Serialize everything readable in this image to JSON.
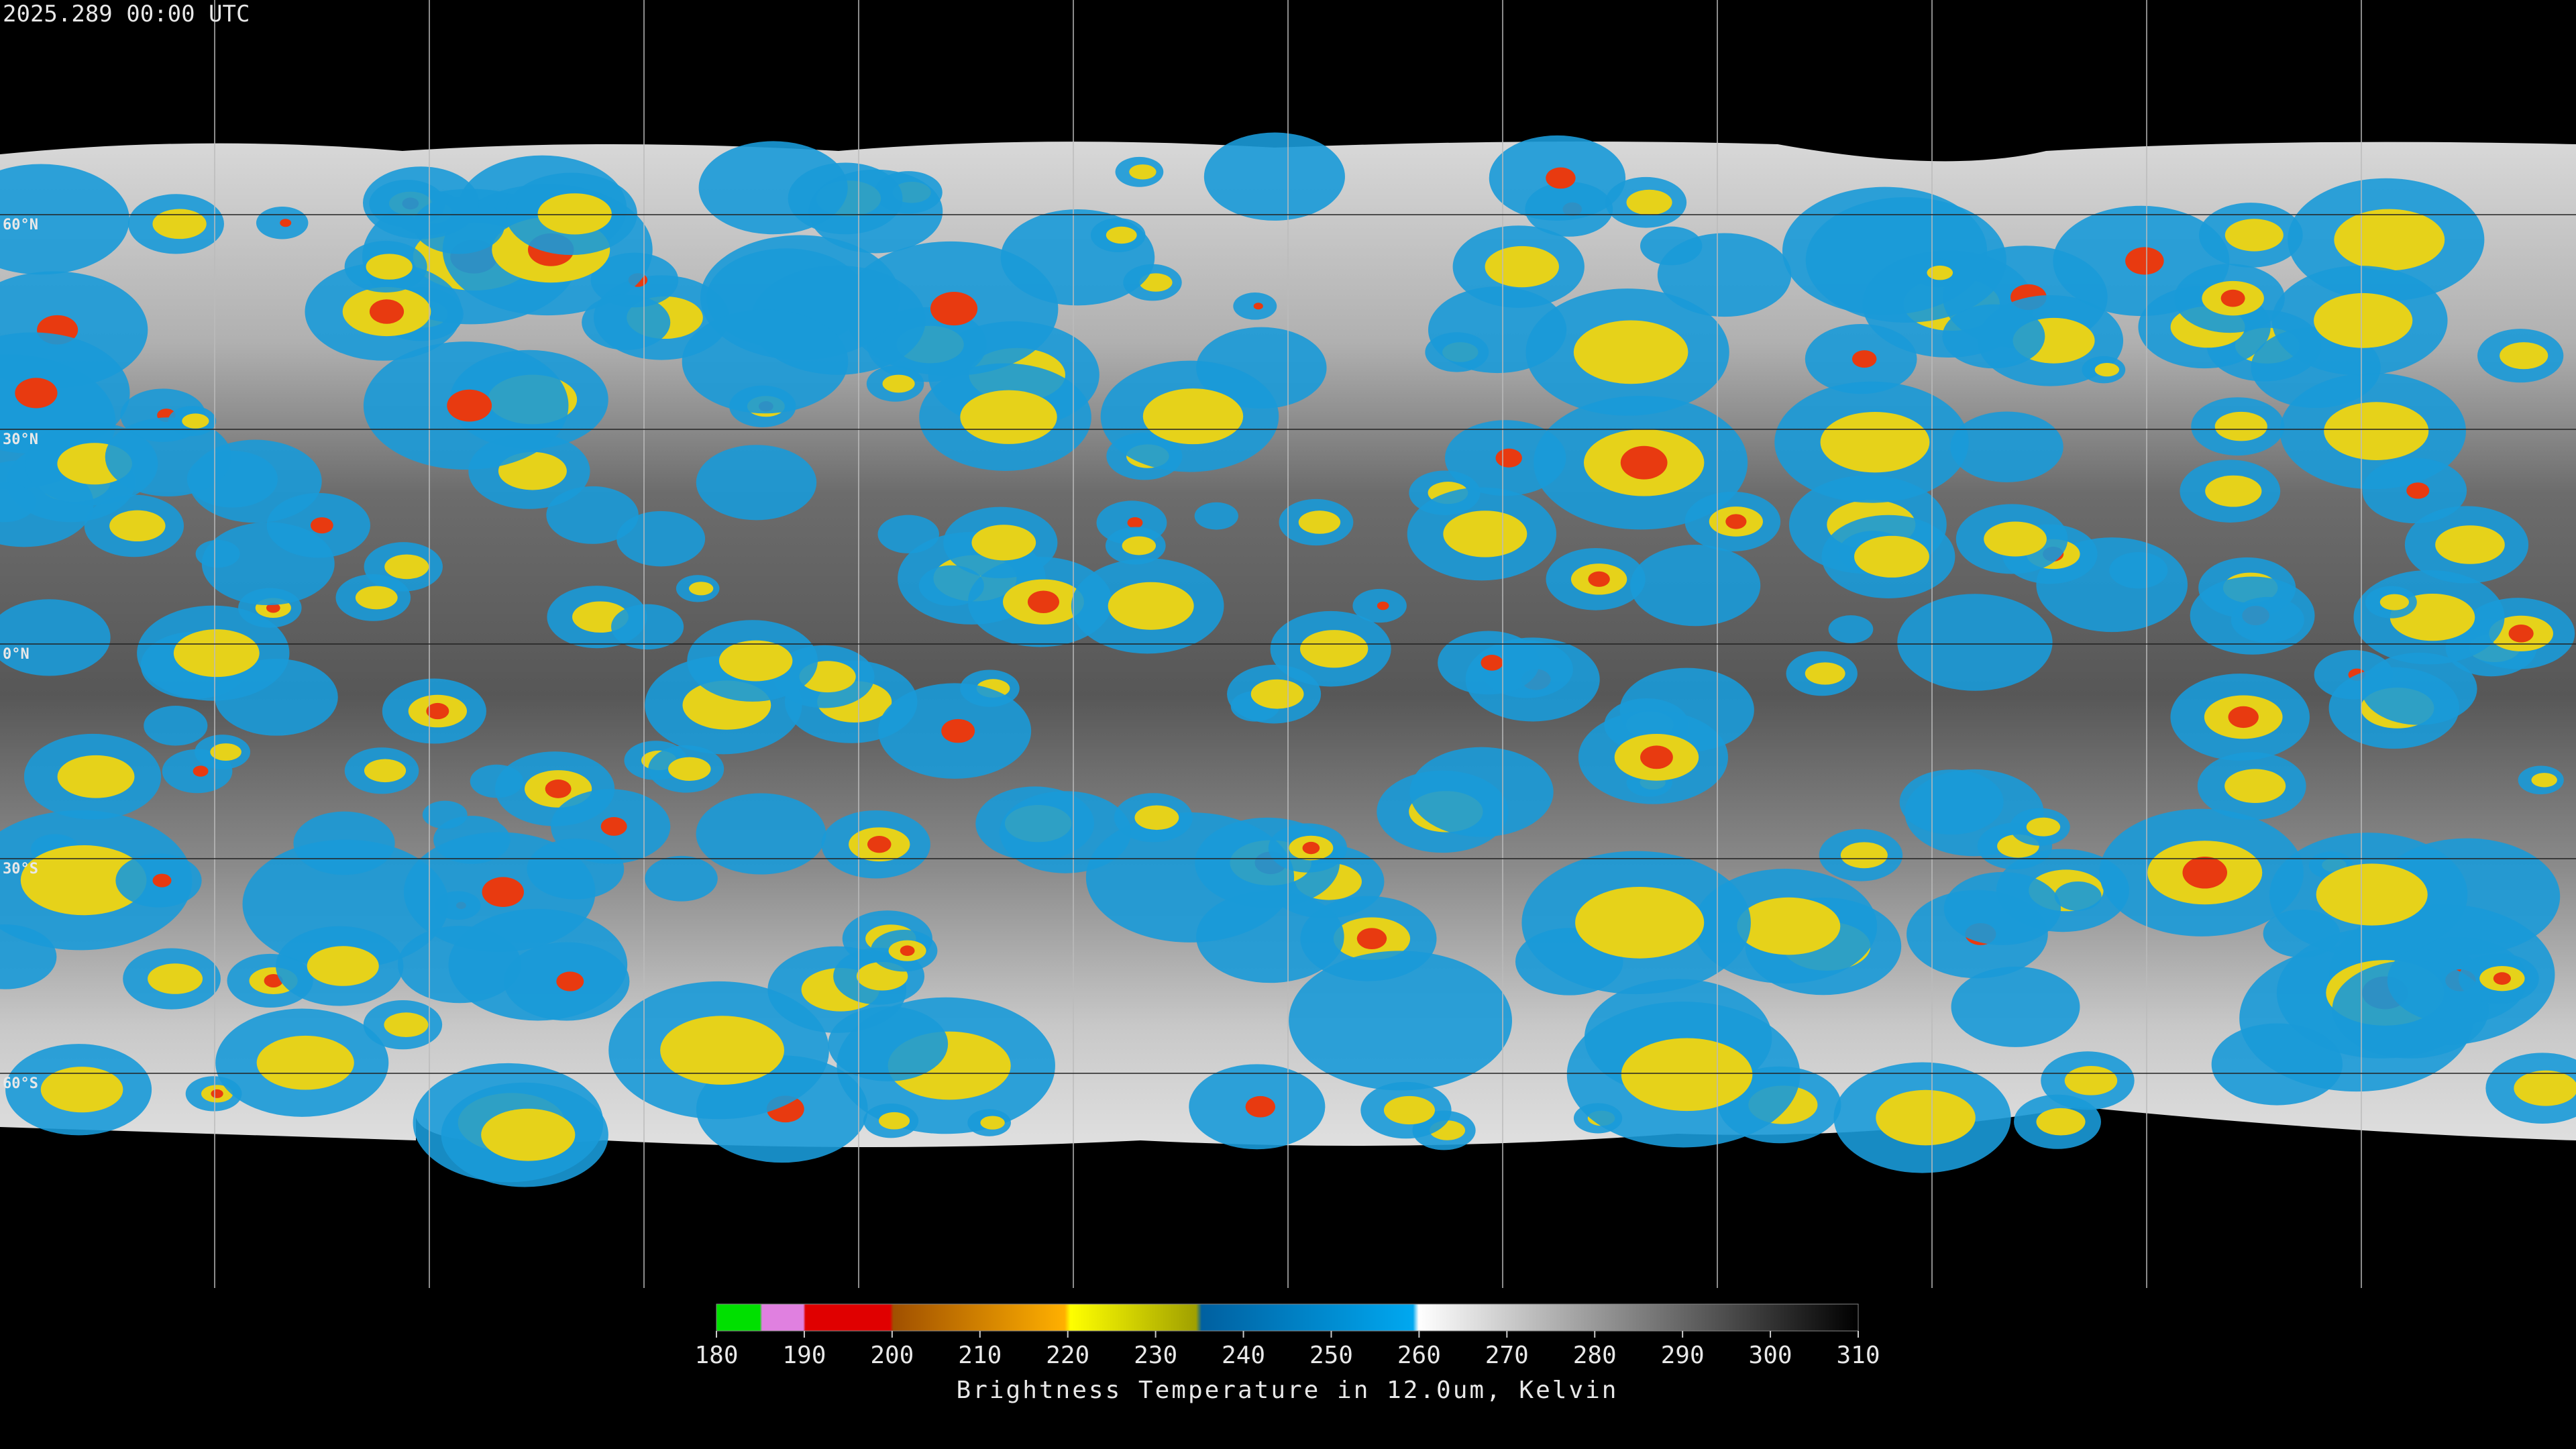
{
  "header": {
    "timestamp": "2025.289 00:00 UTC"
  },
  "map": {
    "lat_labels": [
      "60°N",
      "30°N",
      "0°N",
      "30°S",
      "60°S"
    ]
  },
  "colorbar": {
    "ticks": [
      "180",
      "190",
      "200",
      "210",
      "220",
      "230",
      "240",
      "250",
      "260",
      "270",
      "280",
      "290",
      "300",
      "310"
    ],
    "title": "Brightness Temperature in 12.0um, Kelvin"
  }
}
